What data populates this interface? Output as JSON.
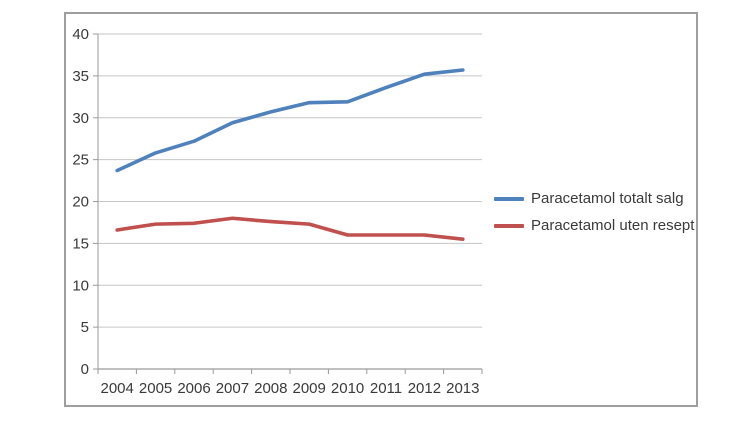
{
  "chart_data": {
    "type": "line",
    "title": "",
    "xlabel": "",
    "ylabel": "",
    "categories": [
      "2004",
      "2005",
      "2006",
      "2007",
      "2008",
      "2009",
      "2010",
      "2011",
      "2012",
      "2013"
    ],
    "series": [
      {
        "name": "Paracetamol totalt salg",
        "color": "#4f81bd",
        "values": [
          23.7,
          25.8,
          27.2,
          29.4,
          30.7,
          31.8,
          31.9,
          33.6,
          35.2,
          35.7
        ]
      },
      {
        "name": "Paracetamol uten resept",
        "color": "#c0504d",
        "values": [
          16.6,
          17.3,
          17.4,
          18.0,
          17.6,
          17.3,
          16.0,
          16.0,
          16.0,
          15.5
        ]
      }
    ],
    "ylim": [
      0,
      40
    ],
    "yticks": [
      0,
      5,
      10,
      15,
      20,
      25,
      30,
      35,
      40
    ],
    "grid": true,
    "legend_position": "right",
    "colors": {
      "gridline": "#c6c6c6",
      "axis": "#9a9a9a",
      "tick_text": "#3a3a3a",
      "frame_border": "#9e9e9e",
      "background": "#ffffff"
    }
  }
}
